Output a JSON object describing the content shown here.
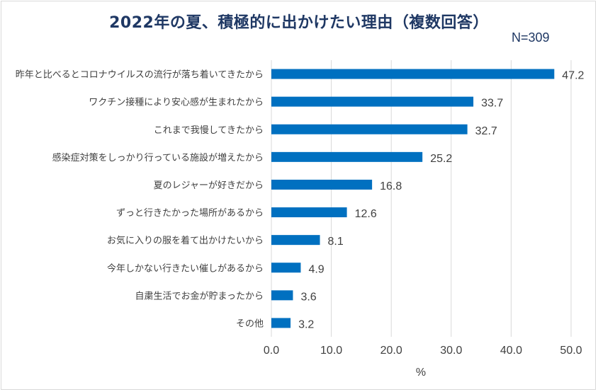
{
  "chart_data": {
    "type": "bar",
    "orientation": "horizontal",
    "title": "2022年の夏、積極的に出かけたい理由（複数回答）",
    "sample_size": "N=309",
    "categories": [
      "昨年と比べるとコロナウイルスの流行が落ち着いてきたから",
      "ワクチン接種により安心感が生まれたから",
      "これまで我慢してきたから",
      "感染症対策をしっかり行っている施設が増えたから",
      "夏のレジャーが好きだから",
      "ずっと行きたかった場所があるから",
      "お気に入りの服を着て出かけたいから",
      "今年しかない行きたい催しがあるから",
      "自粛生活でお金が貯まったから",
      "その他"
    ],
    "values": [
      47.2,
      33.7,
      32.7,
      25.2,
      16.8,
      12.6,
      8.1,
      4.9,
      3.6,
      3.2
    ],
    "value_labels": [
      "47.2",
      "33.7",
      "32.7",
      "25.2",
      "16.8",
      "12.6",
      "8.1",
      "4.9",
      "3.6",
      "3.2"
    ],
    "xlim": [
      0,
      50
    ],
    "x_ticks": [
      "0.0",
      "10.0",
      "20.0",
      "30.0",
      "40.0",
      "50.0"
    ],
    "xlabel": "%",
    "grid": true,
    "bar_color": "#0070c0",
    "grid_color": "#d9d9d9",
    "title_color": "#1f3864"
  }
}
